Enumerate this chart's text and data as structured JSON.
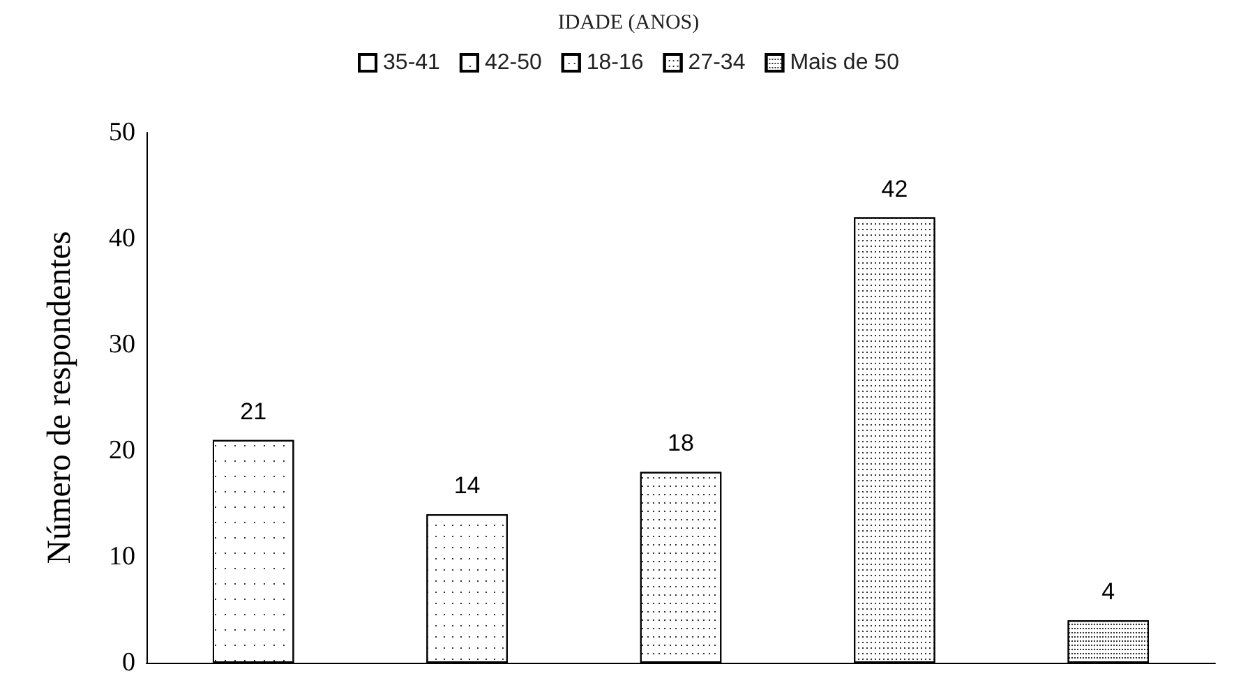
{
  "chart_data": {
    "type": "bar",
    "title": "IDADE (ANOS)",
    "ylabel": "Número de respondentes",
    "categories": [
      null,
      null,
      null,
      null,
      null
    ],
    "series": [
      {
        "name": "35-41",
        "color": "#ffffff",
        "values": [
          21,
          null,
          null,
          null,
          null
        ]
      },
      {
        "name": "42-50",
        "color": "#ffffff",
        "values": [
          null,
          14,
          null,
          null,
          null
        ]
      },
      {
        "name": "18-16",
        "color": "#ffffff",
        "values": [
          null,
          null,
          18,
          null,
          null
        ]
      },
      {
        "name": "27-34",
        "color": "#ffffff",
        "values": [
          null,
          null,
          null,
          42,
          null
        ]
      },
      {
        "name": "Mais de 50",
        "color": "#ffffff",
        "values": [
          null,
          null,
          null,
          null,
          4
        ]
      }
    ],
    "ylim": [
      0,
      50
    ],
    "yticks": [
      0,
      10,
      20,
      30,
      40,
      50
    ],
    "grid": false,
    "legend": "top",
    "data_labels": true
  }
}
